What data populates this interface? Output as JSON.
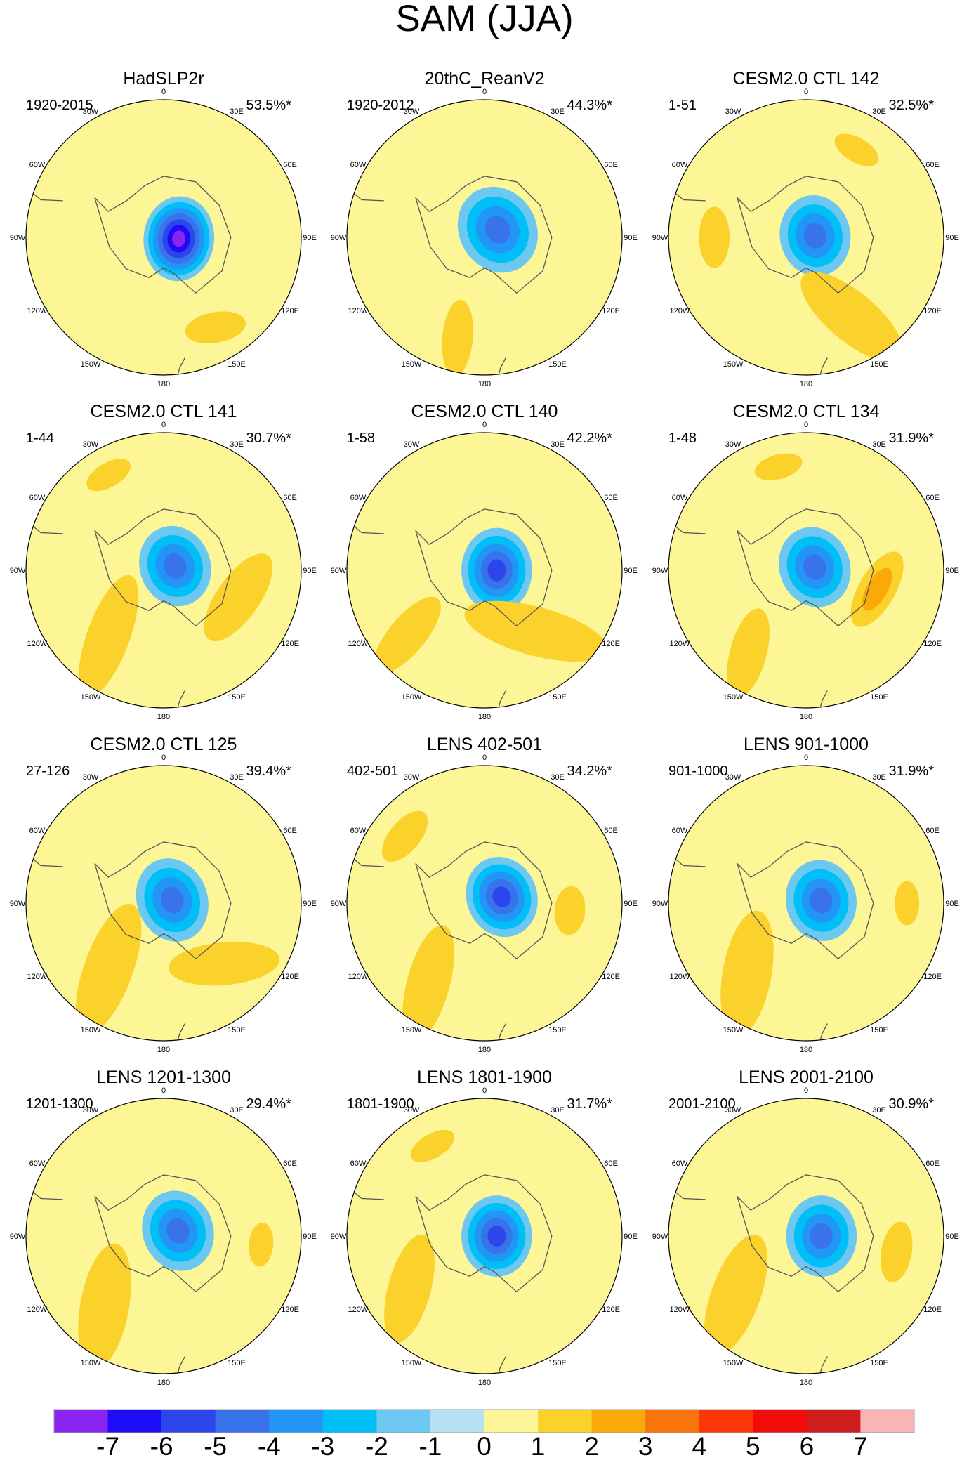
{
  "figure_title": "SAM (JJA)",
  "chart_data": {
    "type": "polar-contour-map-grid",
    "projection": "south-polar-stereographic",
    "field": "SAM sea-level pressure pattern, JJA",
    "longitude_labels": [
      "0",
      "30E",
      "60E",
      "90E",
      "120E",
      "150E",
      "180",
      "150W",
      "120W",
      "90W",
      "60W",
      "30W"
    ],
    "panels": [
      {
        "title": "HadSLP2r",
        "period": "1920-2015",
        "variance": "53.5%*",
        "min_level": -7,
        "features": [
          {
            "lon": 95,
            "colat": 5,
            "size": 11,
            "elong": 1.2,
            "rot": 0,
            "v": -2.4
          },
          {
            "lon": 150,
            "colat": 34,
            "size": 5,
            "elong": 2,
            "rot": 20,
            "v": 1
          }
        ]
      },
      {
        "title": "20thC_ReanV2",
        "period": "1920-2012",
        "variance": "44.3%*",
        "min_level": -4,
        "features": [
          {
            "lon": 60,
            "colat": 5,
            "size": 12,
            "elong": 1.15,
            "rot": 0,
            "v": -1.5
          },
          {
            "lon": 195,
            "colat": 34,
            "size": 5,
            "elong": 2.5,
            "rot": 80,
            "v": 1
          }
        ]
      },
      {
        "title": "CESM2.0 CTL 142",
        "period": "1-51",
        "variance": "32.5%*",
        "min_level": -4,
        "features": [
          {
            "lon": 80,
            "colat": 3,
            "size": 11,
            "elong": 1.15,
            "rot": 0,
            "v": -1.5
          },
          {
            "lon": 150,
            "colat": 30,
            "size": 8,
            "elong": 2.6,
            "rot": 70,
            "v": 1.55
          },
          {
            "lon": 270,
            "colat": 30,
            "size": 5,
            "elong": 2,
            "rot": 0,
            "v": 1
          },
          {
            "lon": 30,
            "colat": 33,
            "size": 4,
            "elong": 2,
            "rot": 0,
            "v": 1
          }
        ]
      },
      {
        "title": "CESM2.0 CTL 141",
        "period": "1-44",
        "variance": "30.7%*",
        "min_level": -4,
        "features": [
          {
            "lon": 70,
            "colat": 4,
            "size": 11,
            "elong": 1.15,
            "rot": 0,
            "v": -1.6
          },
          {
            "lon": 110,
            "colat": 26,
            "size": 7,
            "elong": 2.4,
            "rot": 15,
            "v": 1.6
          },
          {
            "lon": 220,
            "colat": 28,
            "size": 7,
            "elong": 3,
            "rot": 70,
            "v": 1.15
          },
          {
            "lon": 330,
            "colat": 36,
            "size": 4,
            "elong": 2,
            "rot": 0,
            "v": 1
          }
        ]
      },
      {
        "title": "CESM2.0 CTL 140",
        "period": "1-58",
        "variance": "42.2%*",
        "min_level": -5,
        "features": [
          {
            "lon": 90,
            "colat": 4,
            "size": 11,
            "elong": 1.2,
            "rot": 0,
            "v": -1.7
          },
          {
            "lon": 140,
            "colat": 26,
            "size": 8,
            "elong": 3,
            "rot": 55,
            "v": 1.7
          },
          {
            "lon": 230,
            "colat": 33,
            "size": 6,
            "elong": 2.6,
            "rot": 80,
            "v": 1.1
          }
        ]
      },
      {
        "title": "CESM2.0 CTL 134",
        "period": "1-48",
        "variance": "31.9%*",
        "min_level": -4,
        "features": [
          {
            "lon": 70,
            "colat": 3,
            "size": 11,
            "elong": 1.15,
            "rot": 0,
            "v": -1.6
          },
          {
            "lon": 105,
            "colat": 24,
            "size": 6,
            "elong": 2.3,
            "rot": 15,
            "v": 2.5
          },
          {
            "lon": 215,
            "colat": 33,
            "size": 6,
            "elong": 2.5,
            "rot": 70,
            "v": 1.1
          },
          {
            "lon": 345,
            "colat": 35,
            "size": 4,
            "elong": 2,
            "rot": 0,
            "v": 1
          }
        ]
      },
      {
        "title": "CESM2.0 CTL 125",
        "period": "27-126",
        "variance": "39.4%*",
        "min_level": -4,
        "features": [
          {
            "lon": 70,
            "colat": 3,
            "size": 11,
            "elong": 1.2,
            "rot": 0,
            "v": -1.6
          },
          {
            "lon": 135,
            "colat": 28,
            "size": 7,
            "elong": 2.6,
            "rot": 40,
            "v": 1.7
          },
          {
            "lon": 220,
            "colat": 28,
            "size": 8,
            "elong": 2.8,
            "rot": 70,
            "v": 1.8
          }
        ]
      },
      {
        "title": "LENS 402-501",
        "period": "402-501",
        "variance": "34.2%*",
        "min_level": -5,
        "features": [
          {
            "lon": 70,
            "colat": 6,
            "size": 11,
            "elong": 1.15,
            "rot": 0,
            "v": -1.7
          },
          {
            "lon": 95,
            "colat": 28,
            "size": 5,
            "elong": 1.6,
            "rot": 0,
            "v": 1.6
          },
          {
            "lon": 215,
            "colat": 32,
            "size": 7,
            "elong": 2.8,
            "rot": 70,
            "v": 1.1
          },
          {
            "lon": 310,
            "colat": 34,
            "size": 5,
            "elong": 2,
            "rot": 0,
            "v": 1.1
          }
        ]
      },
      {
        "title": "LENS 901-1000",
        "period": "901-1000",
        "variance": "31.9%*",
        "min_level": -4,
        "features": [
          {
            "lon": 80,
            "colat": 5,
            "size": 11,
            "elong": 1.15,
            "rot": 0,
            "v": -1.6
          },
          {
            "lon": 220,
            "colat": 30,
            "size": 8,
            "elong": 2.6,
            "rot": 60,
            "v": 1.75
          },
          {
            "lon": 90,
            "colat": 33,
            "size": 4,
            "elong": 1.8,
            "rot": 0,
            "v": 1
          }
        ]
      },
      {
        "title": "LENS 1201-1300",
        "period": "1201-1300",
        "variance": "29.4%*",
        "min_level": -4,
        "features": [
          {
            "lon": 70,
            "colat": 5,
            "size": 11,
            "elong": 1.15,
            "rot": 0,
            "v": -1.6
          },
          {
            "lon": 220,
            "colat": 30,
            "size": 8,
            "elong": 2.6,
            "rot": 60,
            "v": 1.15
          },
          {
            "lon": 95,
            "colat": 32,
            "size": 4,
            "elong": 1.8,
            "rot": 0,
            "v": 1
          }
        ]
      },
      {
        "title": "LENS 1801-1900",
        "period": "1801-1900",
        "variance": "31.7%*",
        "min_level": -5,
        "features": [
          {
            "lon": 90,
            "colat": 4,
            "size": 11,
            "elong": 1.15,
            "rot": 0,
            "v": -1.6
          },
          {
            "lon": 235,
            "colat": 30,
            "size": 7,
            "elong": 2.6,
            "rot": 50,
            "v": 1.7
          },
          {
            "lon": 330,
            "colat": 34,
            "size": 4,
            "elong": 2,
            "rot": 0,
            "v": 1
          }
        ]
      },
      {
        "title": "LENS 2001-2100",
        "period": "2001-2100",
        "variance": "30.9%*",
        "min_level": -4,
        "features": [
          {
            "lon": 90,
            "colat": 5,
            "size": 11,
            "elong": 1.15,
            "rot": 0,
            "v": -1.6
          },
          {
            "lon": 230,
            "colat": 30,
            "size": 8,
            "elong": 2.6,
            "rot": 60,
            "v": 1.15
          },
          {
            "lon": 100,
            "colat": 30,
            "size": 5,
            "elong": 2,
            "rot": 0,
            "v": 1
          }
        ]
      }
    ],
    "colorbar": {
      "ticks": [
        "-7",
        "-6",
        "-5",
        "-4",
        "-3",
        "-2",
        "-1",
        "0",
        "1",
        "2",
        "3",
        "4",
        "5",
        "6",
        "7"
      ],
      "colors": [
        "#8b24f0",
        "#1e0cf8",
        "#2d46ec",
        "#3873e9",
        "#2196f7",
        "#00bff6",
        "#6cc8f0",
        "#b7e1f2",
        "#fdf697",
        "#fbd12b",
        "#f9aa08",
        "#f7750b",
        "#fb3608",
        "#f20b0b",
        "#d01d1d",
        "#f9b5b5"
      ]
    }
  }
}
